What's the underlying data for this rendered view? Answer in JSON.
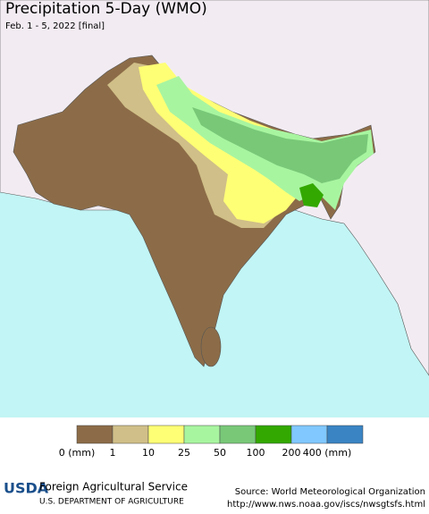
{
  "header": {
    "title": "Precipitation 5-Day (WMO)",
    "subtitle": "Feb. 1 - 5, 2022 [final]"
  },
  "legend": {
    "labels": [
      "0 (mm)",
      "1",
      "10",
      "25",
      "50",
      "100",
      "200",
      "400 (mm)"
    ],
    "colors": [
      "#8c6c48",
      "#d0bf88",
      "#ffff75",
      "#a8f5a0",
      "#78c878",
      "#33a800",
      "#80c8ff",
      "#3a84c4"
    ]
  },
  "footer": {
    "logo": "USDA",
    "agency": "Foreign Agricultural Service",
    "department": "U.S. DEPARTMENT OF AGRICULTURE",
    "source": "Source: World Meteorological Organization",
    "url": "http://www.nws.noaa.gov/iscs/nwsgtsfs.html"
  }
}
